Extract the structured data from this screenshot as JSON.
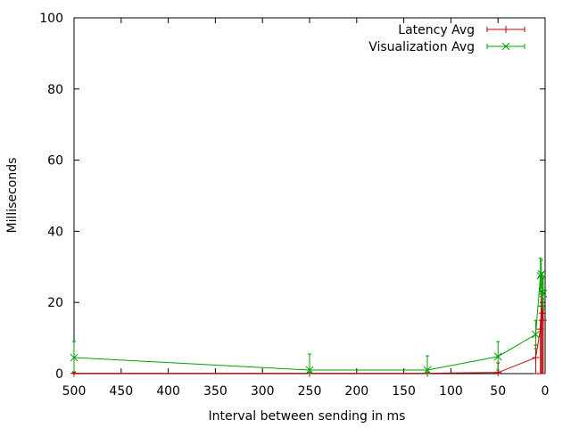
{
  "chart_data": {
    "type": "line",
    "title": "",
    "xlabel": "Interval between sending in ms",
    "ylabel": "Milliseconds",
    "xlim": [
      500,
      0
    ],
    "ylim": [
      0,
      100
    ],
    "x_reversed": true,
    "xticks": [
      500,
      450,
      400,
      350,
      300,
      250,
      200,
      150,
      100,
      50,
      0
    ],
    "yticks": [
      0,
      20,
      40,
      60,
      80,
      100
    ],
    "grid": false,
    "legend_position": "top-right",
    "series": [
      {
        "name": "Latency Avg",
        "color": "#c00000",
        "marker": "plus",
        "points": [
          {
            "x": 500,
            "y": 0.1,
            "lo": 0.0,
            "hi": 0.3
          },
          {
            "x": 250,
            "y": 0.1,
            "lo": 0.0,
            "hi": 0.3
          },
          {
            "x": 125,
            "y": 0.1,
            "lo": 0.0,
            "hi": 0.3
          },
          {
            "x": 50,
            "y": 0.3,
            "lo": 0.0,
            "hi": 3.0
          },
          {
            "x": 10,
            "y": 4.5,
            "lo": 0.0,
            "hi": 8.0
          },
          {
            "x": 5,
            "y": 12.5,
            "lo": 0.0,
            "hi": 15.0
          },
          {
            "x": 4,
            "y": 19.0,
            "lo": 0.0,
            "hi": 23.0
          },
          {
            "x": 3,
            "y": 17.0,
            "lo": 0.0,
            "hi": 21.0
          },
          {
            "x": 2,
            "y": 15.0,
            "lo": 0.0,
            "hi": 19.0
          }
        ]
      },
      {
        "name": "Visualization Avg",
        "color": "#00a000",
        "marker": "cross",
        "points": [
          {
            "x": 500,
            "y": 4.5,
            "lo": 0.5,
            "hi": 9.0
          },
          {
            "x": 250,
            "y": 1.0,
            "lo": 0.0,
            "hi": 5.5
          },
          {
            "x": 125,
            "y": 1.0,
            "lo": 0.0,
            "hi": 5.0
          },
          {
            "x": 50,
            "y": 4.8,
            "lo": 1.0,
            "hi": 9.0
          },
          {
            "x": 10,
            "y": 11.0,
            "lo": 7.0,
            "hi": 15.0
          },
          {
            "x": 5,
            "y": 27.5,
            "lo": 23.0,
            "hi": 32.5
          },
          {
            "x": 4,
            "y": 28.0,
            "lo": 24.0,
            "hi": 32.0
          },
          {
            "x": 3,
            "y": 23.0,
            "lo": 18.5,
            "hi": 27.5
          },
          {
            "x": 2,
            "y": 22.5,
            "lo": 18.0,
            "hi": 27.0
          }
        ]
      }
    ]
  }
}
